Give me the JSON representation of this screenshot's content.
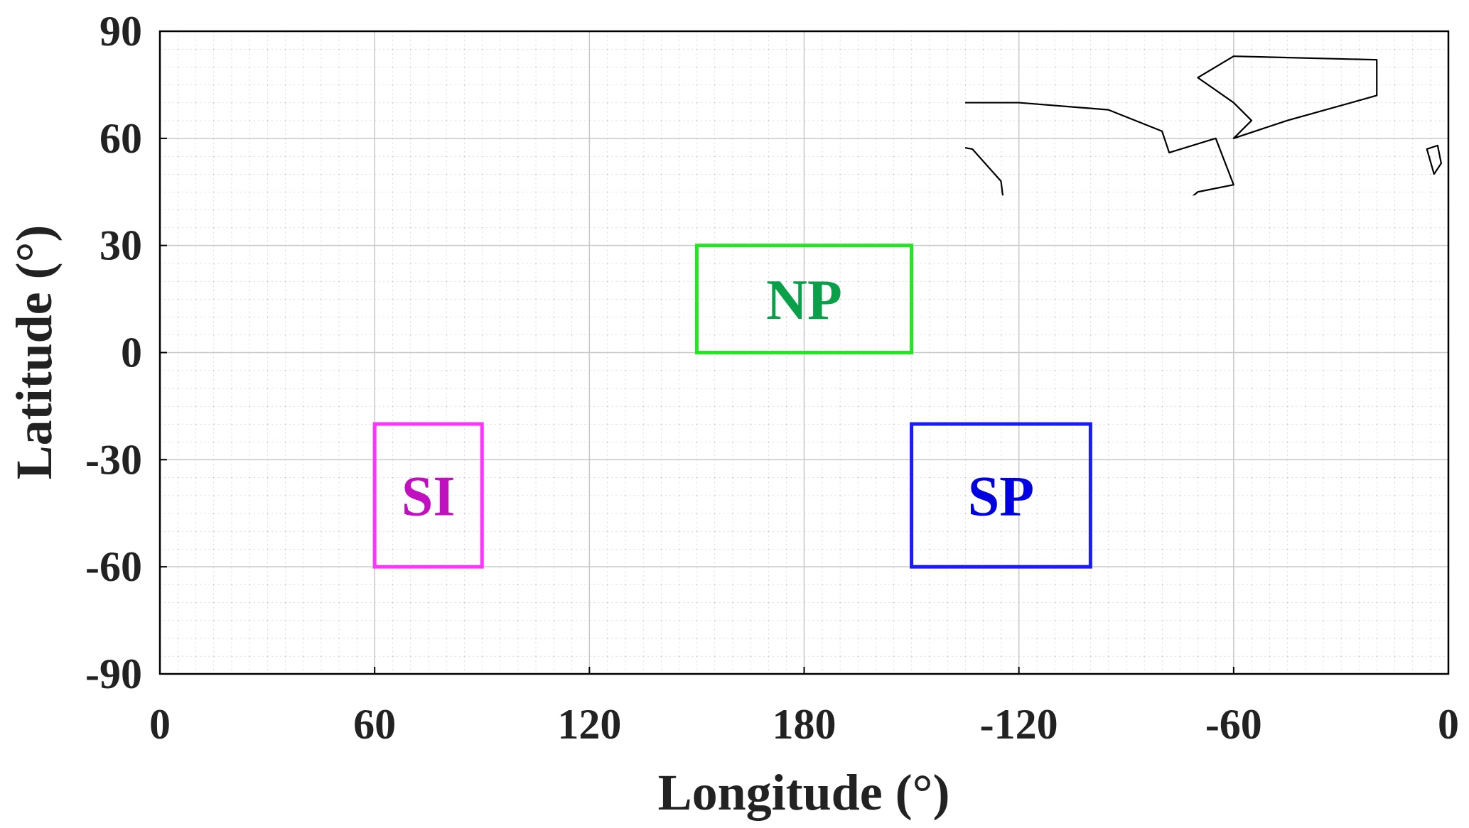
{
  "chart_data": {
    "type": "map",
    "x_label": "Longitude (°)",
    "y_label": "Latitude (°)",
    "xlim": [
      0,
      360
    ],
    "ylim": [
      -90,
      90
    ],
    "xticks": [
      0,
      60,
      120,
      180,
      {
        "value": 240,
        "label": "-120"
      },
      {
        "value": 300,
        "label": "-60"
      },
      {
        "value": 360,
        "label": "0"
      }
    ],
    "yticks": [
      -90,
      -60,
      -30,
      0,
      30,
      60,
      90
    ],
    "grid": true,
    "regions": [
      {
        "name": "NP",
        "color": "#22e622",
        "text_color": "#0aa04a",
        "lon": [
          150,
          210
        ],
        "lat": [
          0,
          30
        ]
      },
      {
        "name": "SI",
        "color": "#ff33ff",
        "text_color": "#c010c0",
        "lon": [
          60,
          90
        ],
        "lat": [
          -60,
          -20
        ]
      },
      {
        "name": "SP",
        "color": "#1a1aff",
        "text_color": "#0000e0",
        "lon": [
          210,
          260
        ],
        "lat": [
          -60,
          -20
        ]
      }
    ]
  }
}
